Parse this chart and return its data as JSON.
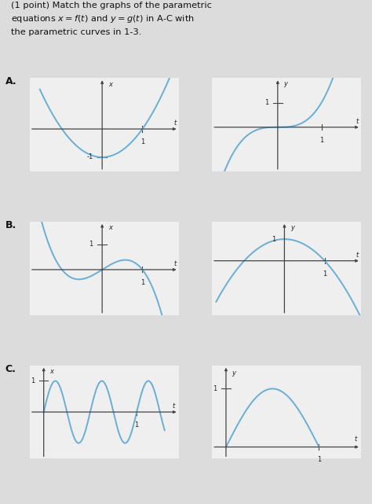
{
  "bg_color": "#dcdcdc",
  "panel_bg": "#efefef",
  "curve_color": "#6aaed6",
  "axis_color": "#444444",
  "label_color": "#222222",
  "title_line1": "(1 point) Match the graphs of the parametric",
  "title_line2": "equations $x = f(t)$ and $y = g(t)$ in A-C with",
  "title_line3": "the parametric curves in 1-3.",
  "sec_A": "A.",
  "sec_B": "B.",
  "sec_C": "C."
}
